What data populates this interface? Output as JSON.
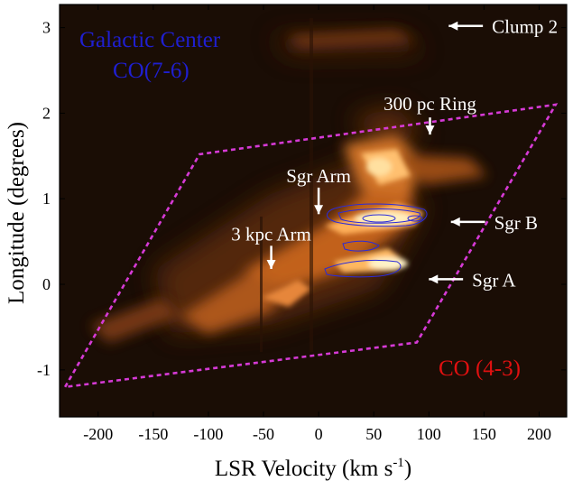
{
  "chart_data": {
    "type": "heatmap",
    "title": "",
    "xlabel": "LSR Velocity (km s",
    "xlabel_sup": "-1",
    "xlabel_close": ")",
    "ylabel": "Longitude (degrees)",
    "xlim": [
      -235,
      225
    ],
    "ylim": [
      -1.55,
      3.27
    ],
    "xticks": [
      -200,
      -150,
      -100,
      -50,
      0,
      50,
      100,
      150,
      200
    ],
    "xtick_labels": [
      "-200",
      "-150",
      "-100",
      "-50",
      "0",
      "50",
      "100",
      "150",
      "200"
    ],
    "yticks": [
      -1,
      0,
      1,
      2,
      3
    ],
    "ytick_labels": [
      "-1",
      "0",
      "1",
      "2",
      "3"
    ],
    "grid": false,
    "corner_labels": {
      "top_left_line1": "Galactic Center",
      "top_left_line2": "CO(7-6)",
      "bottom_right": "CO (4-3)"
    },
    "colors": {
      "background": "#1a0d05",
      "emission": "#ff9a3c",
      "emission_peak": "#fff3c8",
      "contour": "#2b2bd9",
      "parallelogram": "#d63ad6",
      "annotation": "#ffffff",
      "corner_label_blue": "#1f1fd0",
      "corner_label_red": "#e01010"
    },
    "parallelogram": {
      "vertices": [
        {
          "v": -230,
          "l": -1.2
        },
        {
          "v": -108,
          "l": 1.52
        },
        {
          "v": 215,
          "l": 2.1
        },
        {
          "v": 89,
          "l": -0.68
        }
      ]
    },
    "annotations": [
      {
        "text": "Clump 2",
        "arrow_from": {
          "v": 149,
          "l": 3.02
        },
        "arrow_to": {
          "v": 118,
          "l": 3.02
        }
      },
      {
        "text": "300 pc Ring",
        "arrow_from": {
          "v": 101,
          "l": 1.95
        },
        "arrow_to": {
          "v": 101,
          "l": 1.75
        }
      },
      {
        "text": "Sgr Arm",
        "arrow_from": {
          "v": 0,
          "l": 1.13
        },
        "arrow_to": {
          "v": 0,
          "l": 0.82
        }
      },
      {
        "text": "3 kpc Arm",
        "arrow_from": {
          "v": -43,
          "l": 0.45
        },
        "arrow_to": {
          "v": -43,
          "l": 0.18
        }
      },
      {
        "text": "Sgr B",
        "arrow_from": {
          "v": 151,
          "l": 0.73
        },
        "arrow_to": {
          "v": 120,
          "l": 0.73
        }
      },
      {
        "text": "Sgr A",
        "arrow_from": {
          "v": 131,
          "l": 0.06
        },
        "arrow_to": {
          "v": 100,
          "l": 0.06
        }
      }
    ]
  }
}
